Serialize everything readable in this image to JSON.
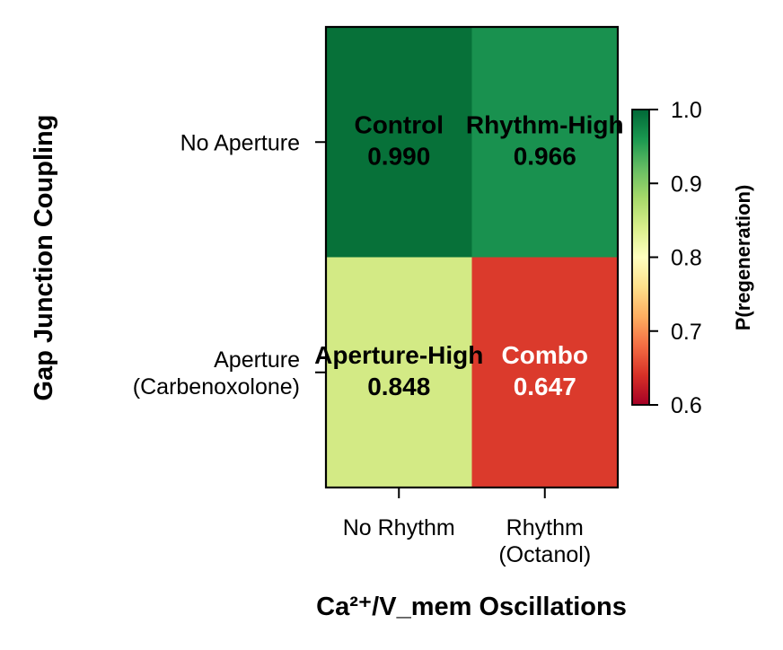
{
  "chart_data": {
    "type": "heatmap",
    "xlabel": "Ca²⁺/V_mem Oscillations",
    "ylabel": "Gap Junction Coupling",
    "x_categories": [
      [
        "No Rhythm"
      ],
      [
        "Rhythm",
        "(Octanol)"
      ]
    ],
    "y_categories": [
      [
        "No Aperture"
      ],
      [
        "Aperture",
        "(Carbenoxolone)"
      ]
    ],
    "cells": [
      [
        {
          "name": "Control",
          "value": 0.99,
          "value_text": "0.990",
          "color": "#077139",
          "text_color": "#000000"
        },
        {
          "name": "Rhythm-High",
          "value": 0.966,
          "value_text": "0.966",
          "color": "#19914f",
          "text_color": "#000000"
        }
      ],
      [
        {
          "name": "Aperture-High",
          "value": 0.848,
          "value_text": "0.848",
          "color": "#d3ea85",
          "text_color": "#000000"
        },
        {
          "name": "Combo",
          "value": 0.647,
          "value_text": "0.647",
          "color": "#db3a2c",
          "text_color": "#ffffff"
        }
      ]
    ],
    "colorbar": {
      "title": "P(regeneration)",
      "colormap": "RdYlGn",
      "vmin": 0.6,
      "vmax": 1.0,
      "ticks": [
        "0.6",
        "0.7",
        "0.8",
        "0.9",
        "1.0"
      ],
      "stops": [
        "#a50026",
        "#d73027",
        "#f46d43",
        "#fdae61",
        "#fee08b",
        "#ffffbf",
        "#d9ef8b",
        "#a6d96a",
        "#66bd63",
        "#1a9850",
        "#006837"
      ]
    }
  }
}
